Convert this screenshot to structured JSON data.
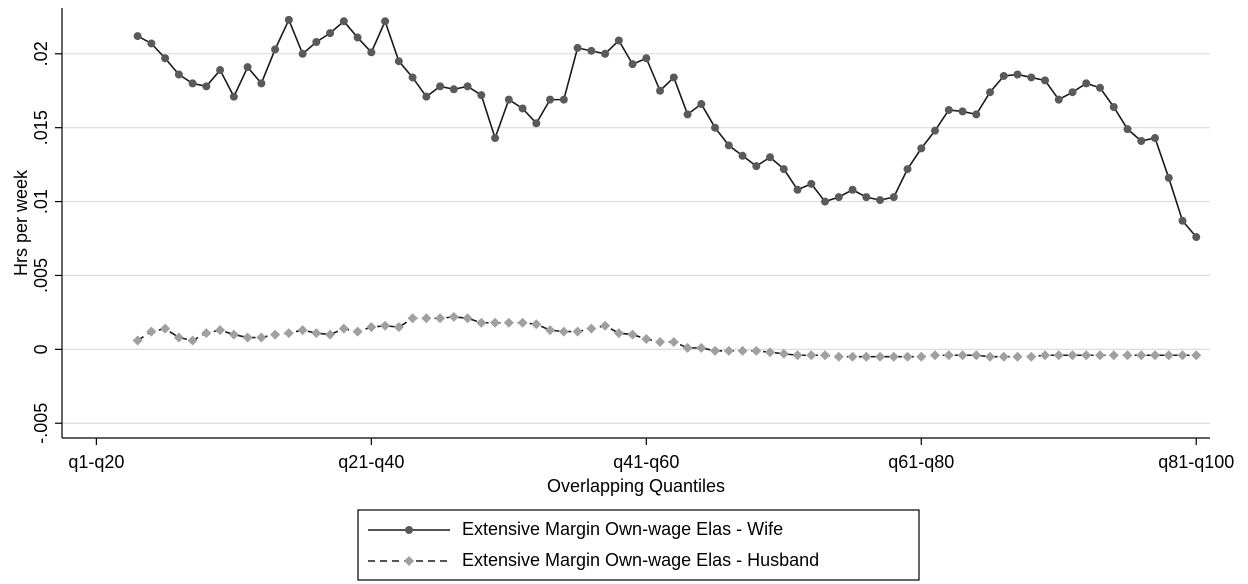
{
  "chart_data": {
    "type": "line",
    "x_label": "Overlapping Quantiles",
    "y_label": "Hrs per week",
    "x": [
      3,
      4,
      5,
      6,
      7,
      8,
      9,
      10,
      11,
      12,
      13,
      14,
      15,
      16,
      17,
      18,
      19,
      20,
      21,
      22,
      23,
      24,
      25,
      26,
      27,
      28,
      29,
      30,
      31,
      32,
      33,
      34,
      35,
      36,
      37,
      38,
      39,
      40,
      41,
      42,
      43,
      44,
      45,
      46,
      47,
      48,
      49,
      50,
      51,
      52,
      53,
      54,
      55,
      56,
      57,
      58,
      59,
      60,
      61,
      62,
      63,
      64,
      65,
      66,
      67,
      68,
      69,
      70,
      71,
      72,
      73,
      74,
      75,
      76,
      77,
      78,
      79,
      80
    ],
    "xlim": [
      -2.5,
      81
    ],
    "xticks": [
      {
        "value": 0,
        "label": "q1-q20"
      },
      {
        "value": 20,
        "label": "q21-q40"
      },
      {
        "value": 40,
        "label": "q41-q60"
      },
      {
        "value": 60,
        "label": "q61-q80"
      },
      {
        "value": 80,
        "label": "q81-q100"
      }
    ],
    "ylim": [
      -0.006,
      0.0231
    ],
    "yticks": [
      {
        "value": -0.005,
        "label": "-.005"
      },
      0,
      {
        "value": 0.005,
        "label": ".005"
      },
      {
        "value": 0.01,
        "label": ".01"
      },
      {
        "value": 0.015,
        "label": ".015"
      },
      {
        "value": 0.02,
        "label": ".02"
      }
    ],
    "grid": true,
    "legend": "bottom",
    "series": [
      {
        "name": "Extensive Margin Own-wage Elas - Wife",
        "color": "#1a1a1a",
        "marker_color": "#5a5a5a",
        "marker": "circle",
        "dash": false,
        "values": [
          0.0212,
          0.0207,
          0.0197,
          0.0186,
          0.018,
          0.0178,
          0.0189,
          0.0171,
          0.0191,
          0.018,
          0.0203,
          0.0223,
          0.02,
          0.0208,
          0.0214,
          0.0222,
          0.0211,
          0.0201,
          0.0222,
          0.0195,
          0.0184,
          0.0171,
          0.0178,
          0.0176,
          0.0178,
          0.0172,
          0.0143,
          0.0169,
          0.0163,
          0.0153,
          0.0169,
          0.0169,
          0.0204,
          0.0202,
          0.02,
          0.0209,
          0.0193,
          0.0197,
          0.0175,
          0.0184,
          0.0159,
          0.0166,
          0.015,
          0.0138,
          0.0131,
          0.0124,
          0.013,
          0.0122,
          0.0108,
          0.0112,
          0.01,
          0.0103,
          0.0108,
          0.0103,
          0.0101,
          0.0103,
          0.0122,
          0.0136,
          0.0148,
          0.0162,
          0.0161,
          0.0159,
          0.0174,
          0.0185,
          0.0186,
          0.0184,
          0.0182,
          0.0169,
          0.0174,
          0.018,
          0.0177,
          0.0164,
          0.0149,
          0.0141,
          0.0143,
          0.0116,
          0.0087,
          0.0076
        ]
      },
      {
        "name": "Extensive Margin Own-wage Elas - Husband",
        "color": "#1a1a1a",
        "marker_color": "#a0a0a0",
        "marker": "diamond",
        "dash": true,
        "values": [
          0.0006,
          0.0012,
          0.0014,
          0.0008,
          0.0006,
          0.0011,
          0.0013,
          0.001,
          0.0008,
          0.0008,
          0.001,
          0.0011,
          0.0013,
          0.0011,
          0.001,
          0.0014,
          0.0012,
          0.0015,
          0.0016,
          0.0015,
          0.0021,
          0.0021,
          0.0021,
          0.0022,
          0.0021,
          0.0018,
          0.0018,
          0.0018,
          0.0018,
          0.0017,
          0.0013,
          0.0012,
          0.0012,
          0.0014,
          0.0016,
          0.0011,
          0.001,
          0.0007,
          0.0005,
          0.0005,
          0.0001,
          0.0001,
          -0.0001,
          -0.0001,
          -0.0001,
          -0.0001,
          -0.0002,
          -0.0003,
          -0.0004,
          -0.0004,
          -0.0004,
          -0.0005,
          -0.0005,
          -0.0005,
          -0.0005,
          -0.0005,
          -0.0005,
          -0.0005,
          -0.0004,
          -0.0004,
          -0.0004,
          -0.0004,
          -0.0005,
          -0.0005,
          -0.0005,
          -0.0005,
          -0.0004,
          -0.0004,
          -0.0004,
          -0.0004,
          -0.0004,
          -0.0004,
          -0.0004,
          -0.0004,
          -0.0004,
          -0.0004,
          -0.0004,
          -0.0004
        ]
      }
    ]
  }
}
